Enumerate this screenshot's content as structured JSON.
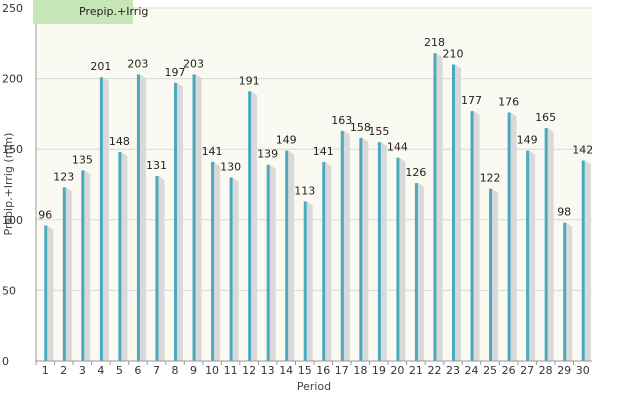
{
  "chart_data": {
    "type": "bar",
    "xlabel": "Period",
    "ylabel": "Prepip.+Irrig (mm)",
    "ylim": [
      0,
      250
    ],
    "yticks": [
      0,
      50,
      100,
      150,
      200,
      250
    ],
    "grid": true,
    "legend_position": "top-left",
    "categories": [
      "1",
      "2",
      "3",
      "4",
      "5",
      "6",
      "7",
      "8",
      "9",
      "10",
      "11",
      "12",
      "13",
      "14",
      "15",
      "16",
      "17",
      "18",
      "19",
      "20",
      "21",
      "22",
      "23",
      "24",
      "25",
      "26",
      "27",
      "28",
      "29",
      "30"
    ],
    "series": [
      {
        "name": "Prepip.+Irrig",
        "color": "#4aa9bf",
        "values": [
          96,
          123,
          135,
          201,
          148,
          203,
          131,
          197,
          203,
          141,
          130,
          191,
          139,
          149,
          113,
          141,
          163,
          158,
          155,
          144,
          126,
          218,
          210,
          177,
          122,
          176,
          149,
          165,
          98,
          142
        ]
      }
    ],
    "legend_color": "#c6e6b8",
    "shadow_color": "#d9d9d9",
    "grid_color": "#d8d8d8",
    "plot_background": "#fbfaf2"
  }
}
